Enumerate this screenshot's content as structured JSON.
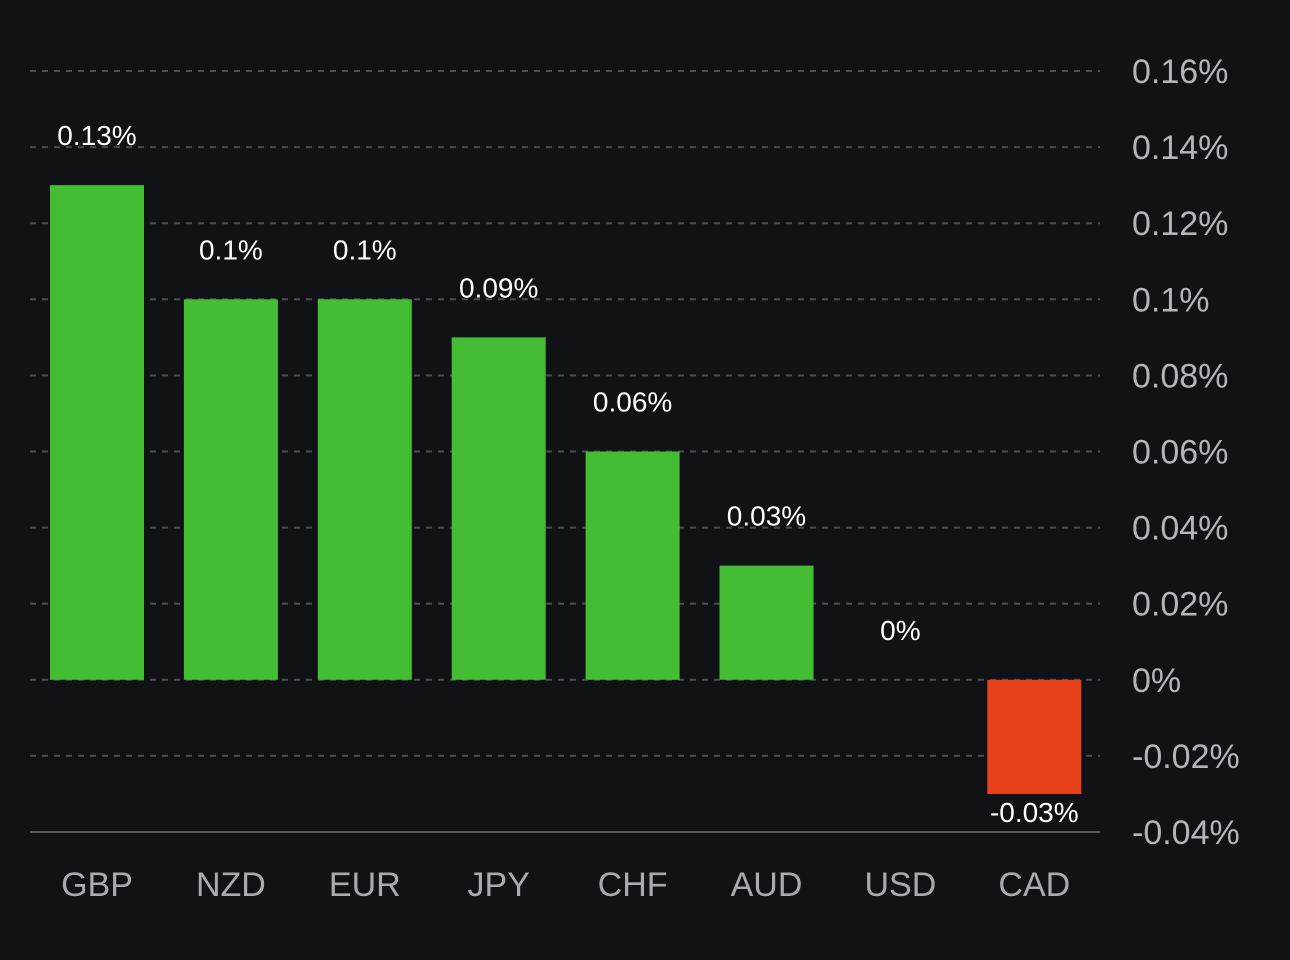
{
  "chart_data": {
    "type": "bar",
    "categories": [
      "GBP",
      "NZD",
      "EUR",
      "JPY",
      "CHF",
      "AUD",
      "USD",
      "CAD"
    ],
    "values": [
      0.13,
      0.1,
      0.1,
      0.09,
      0.06,
      0.03,
      0,
      -0.03
    ],
    "data_labels": [
      "0.13%",
      "0.1%",
      "0.1%",
      "0.09%",
      "0.06%",
      "0.03%",
      "0%",
      "-0.03%"
    ],
    "ylim": [
      -0.04,
      0.16
    ],
    "yticks": [
      0.16,
      0.14,
      0.12,
      0.1,
      0.08,
      0.06,
      0.04,
      0.02,
      0,
      -0.02,
      -0.04
    ],
    "ytick_labels": [
      "0.16%",
      "0.14%",
      "0.12%",
      "0.1%",
      "0.08%",
      "0.06%",
      "0.04%",
      "0.02%",
      "0%",
      "-0.02%",
      "-0.04%"
    ],
    "yaxis_position": "right",
    "grid": true,
    "title": "",
    "xlabel": "",
    "ylabel": "",
    "colors": {
      "background": "#111215",
      "positive": "#44bd35",
      "negative": "#e8421d",
      "grid": "#4a4c52",
      "axis_text": "#b3b5ba",
      "label_text": "#ffffff"
    }
  }
}
